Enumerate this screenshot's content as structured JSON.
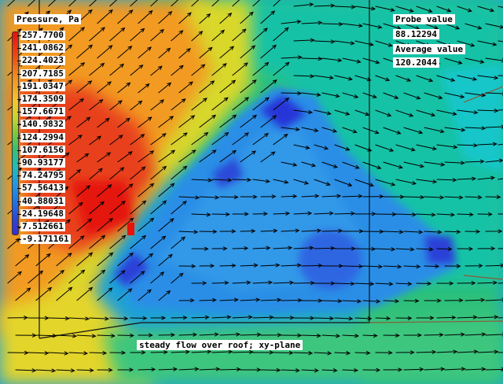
{
  "legend": {
    "title": "Pressure, Pa",
    "ticks": [
      "257.7700",
      "241.0862",
      "224.4023",
      "207.7185",
      "191.0347",
      "174.3509",
      "157.6671",
      "140.9832",
      "124.2994",
      "107.6156",
      "90.93177",
      "74.24795",
      "57.56413",
      "40.88031",
      "24.19648",
      "7.512661",
      "-9.171161"
    ],
    "colors": [
      "#e5120b",
      "#f04a10",
      "#f58d1c",
      "#f5c52a",
      "#c9d52c",
      "#7cc93b",
      "#37c070",
      "#1fc0b4",
      "#1f9fdf",
      "#2272e6",
      "#2f42d8",
      "#3a2fcf"
    ]
  },
  "probe": {
    "label": "Probe value",
    "value": "88.12294"
  },
  "average": {
    "label": "Average value",
    "value": "120.2044"
  },
  "caption": "steady flow over roof; xy-plane",
  "field_colors": {
    "high": "#e8341a",
    "mid_high": "#f5a020",
    "mid": "#c8d82a",
    "green": "#2fc07a",
    "teal": "#17c3b0",
    "light_blue": "#1ea5dc",
    "blue": "#2f7be6",
    "deep_blue": "#2b3fd6",
    "vector": "#000000",
    "probe_marker": "#e8120c"
  }
}
